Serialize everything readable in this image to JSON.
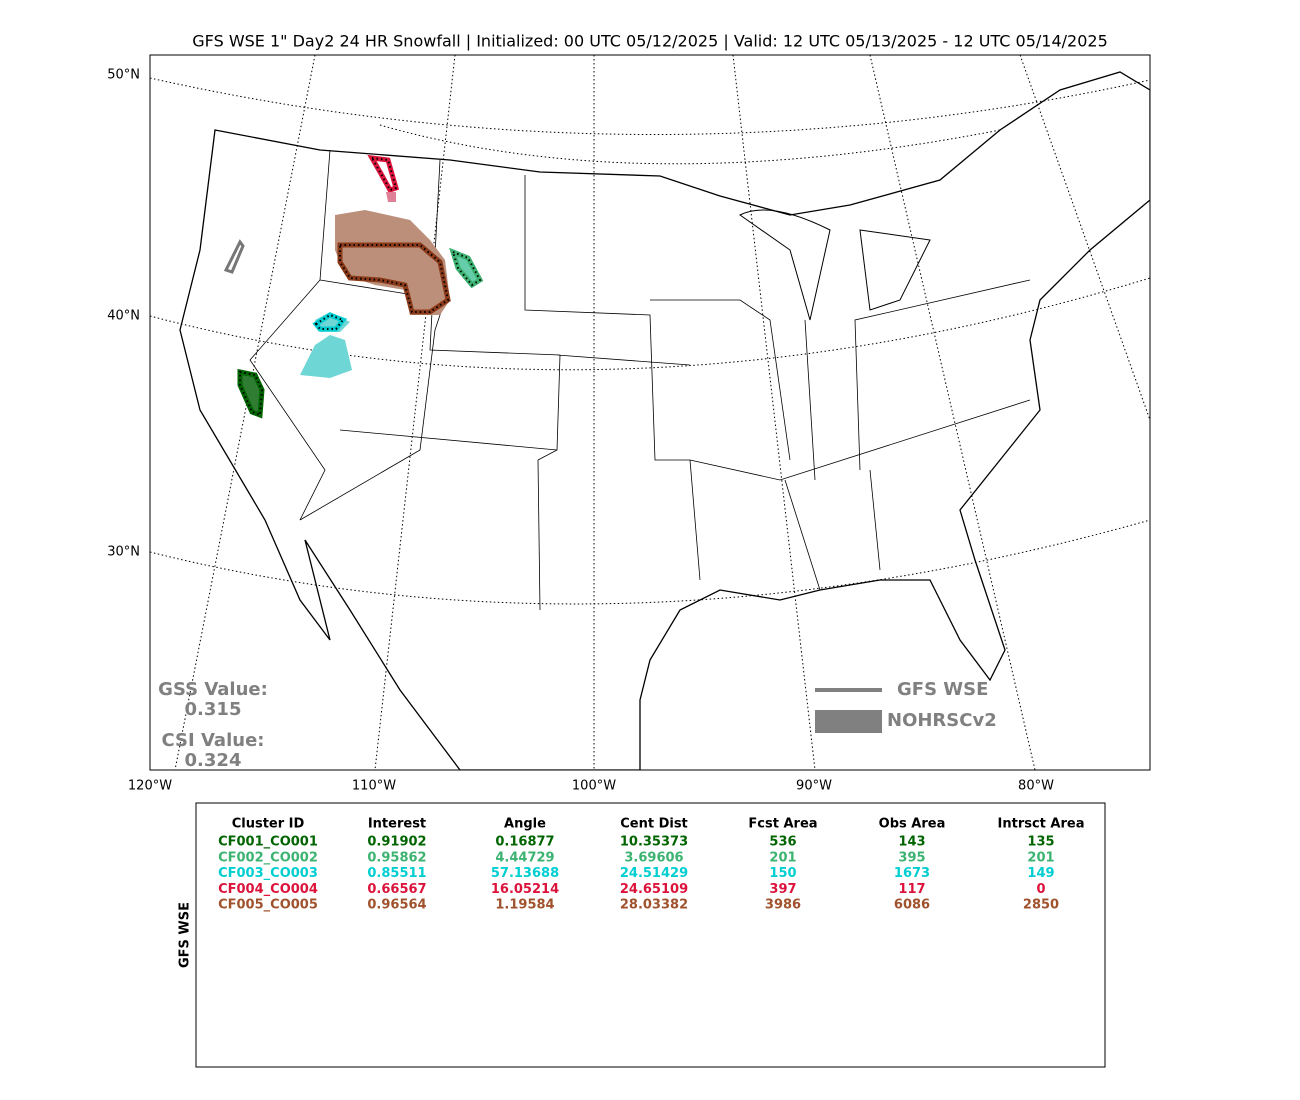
{
  "title": "GFS WSE 1\" Day2 24 HR Snowfall | Initialized: 00 UTC 05/12/2025 | Valid: 12 UTC 05/13/2025 - 12 UTC 05/14/2025",
  "map": {
    "lat_labels": [
      "50°N",
      "40°N",
      "30°N"
    ],
    "lon_labels": [
      "120°W",
      "110°W",
      "100°W",
      "90°W",
      "80°W"
    ],
    "scores": [
      {
        "label": "GSS Value:",
        "value": "0.315"
      },
      {
        "label": "CSI Value:",
        "value": "0.324"
      }
    ],
    "legend": [
      {
        "label": "GFS WSE",
        "style": "line",
        "color": "#808080"
      },
      {
        "label": "NOHRSCv2",
        "style": "box",
        "color": "#808080"
      }
    ]
  },
  "table": {
    "side_label": "GFS WSE",
    "columns": [
      "Cluster ID",
      "Interest",
      "Angle",
      "Cent Dist",
      "Fcst Area",
      "Obs Area",
      "Intrsct Area"
    ],
    "rows": [
      {
        "color": "#006400",
        "cells": [
          "CF001_CO001",
          "0.91902",
          "0.16877",
          "10.35373",
          "536",
          "143",
          "135"
        ]
      },
      {
        "color": "#3cb371",
        "cells": [
          "CF002_CO002",
          "0.95862",
          "4.44729",
          "3.69606",
          "201",
          "395",
          "201"
        ]
      },
      {
        "color": "#00ced1",
        "cells": [
          "CF003_CO003",
          "0.85511",
          "57.13688",
          "24.51429",
          "150",
          "1673",
          "149"
        ]
      },
      {
        "color": "#dc143c",
        "cells": [
          "CF004_CO004",
          "0.66567",
          "16.05214",
          "24.65109",
          "397",
          "117",
          "0"
        ]
      },
      {
        "color": "#a0522d",
        "cells": [
          "CF005_CO005",
          "0.96564",
          "1.19584",
          "28.03382",
          "3986",
          "6086",
          "2850"
        ]
      }
    ]
  }
}
